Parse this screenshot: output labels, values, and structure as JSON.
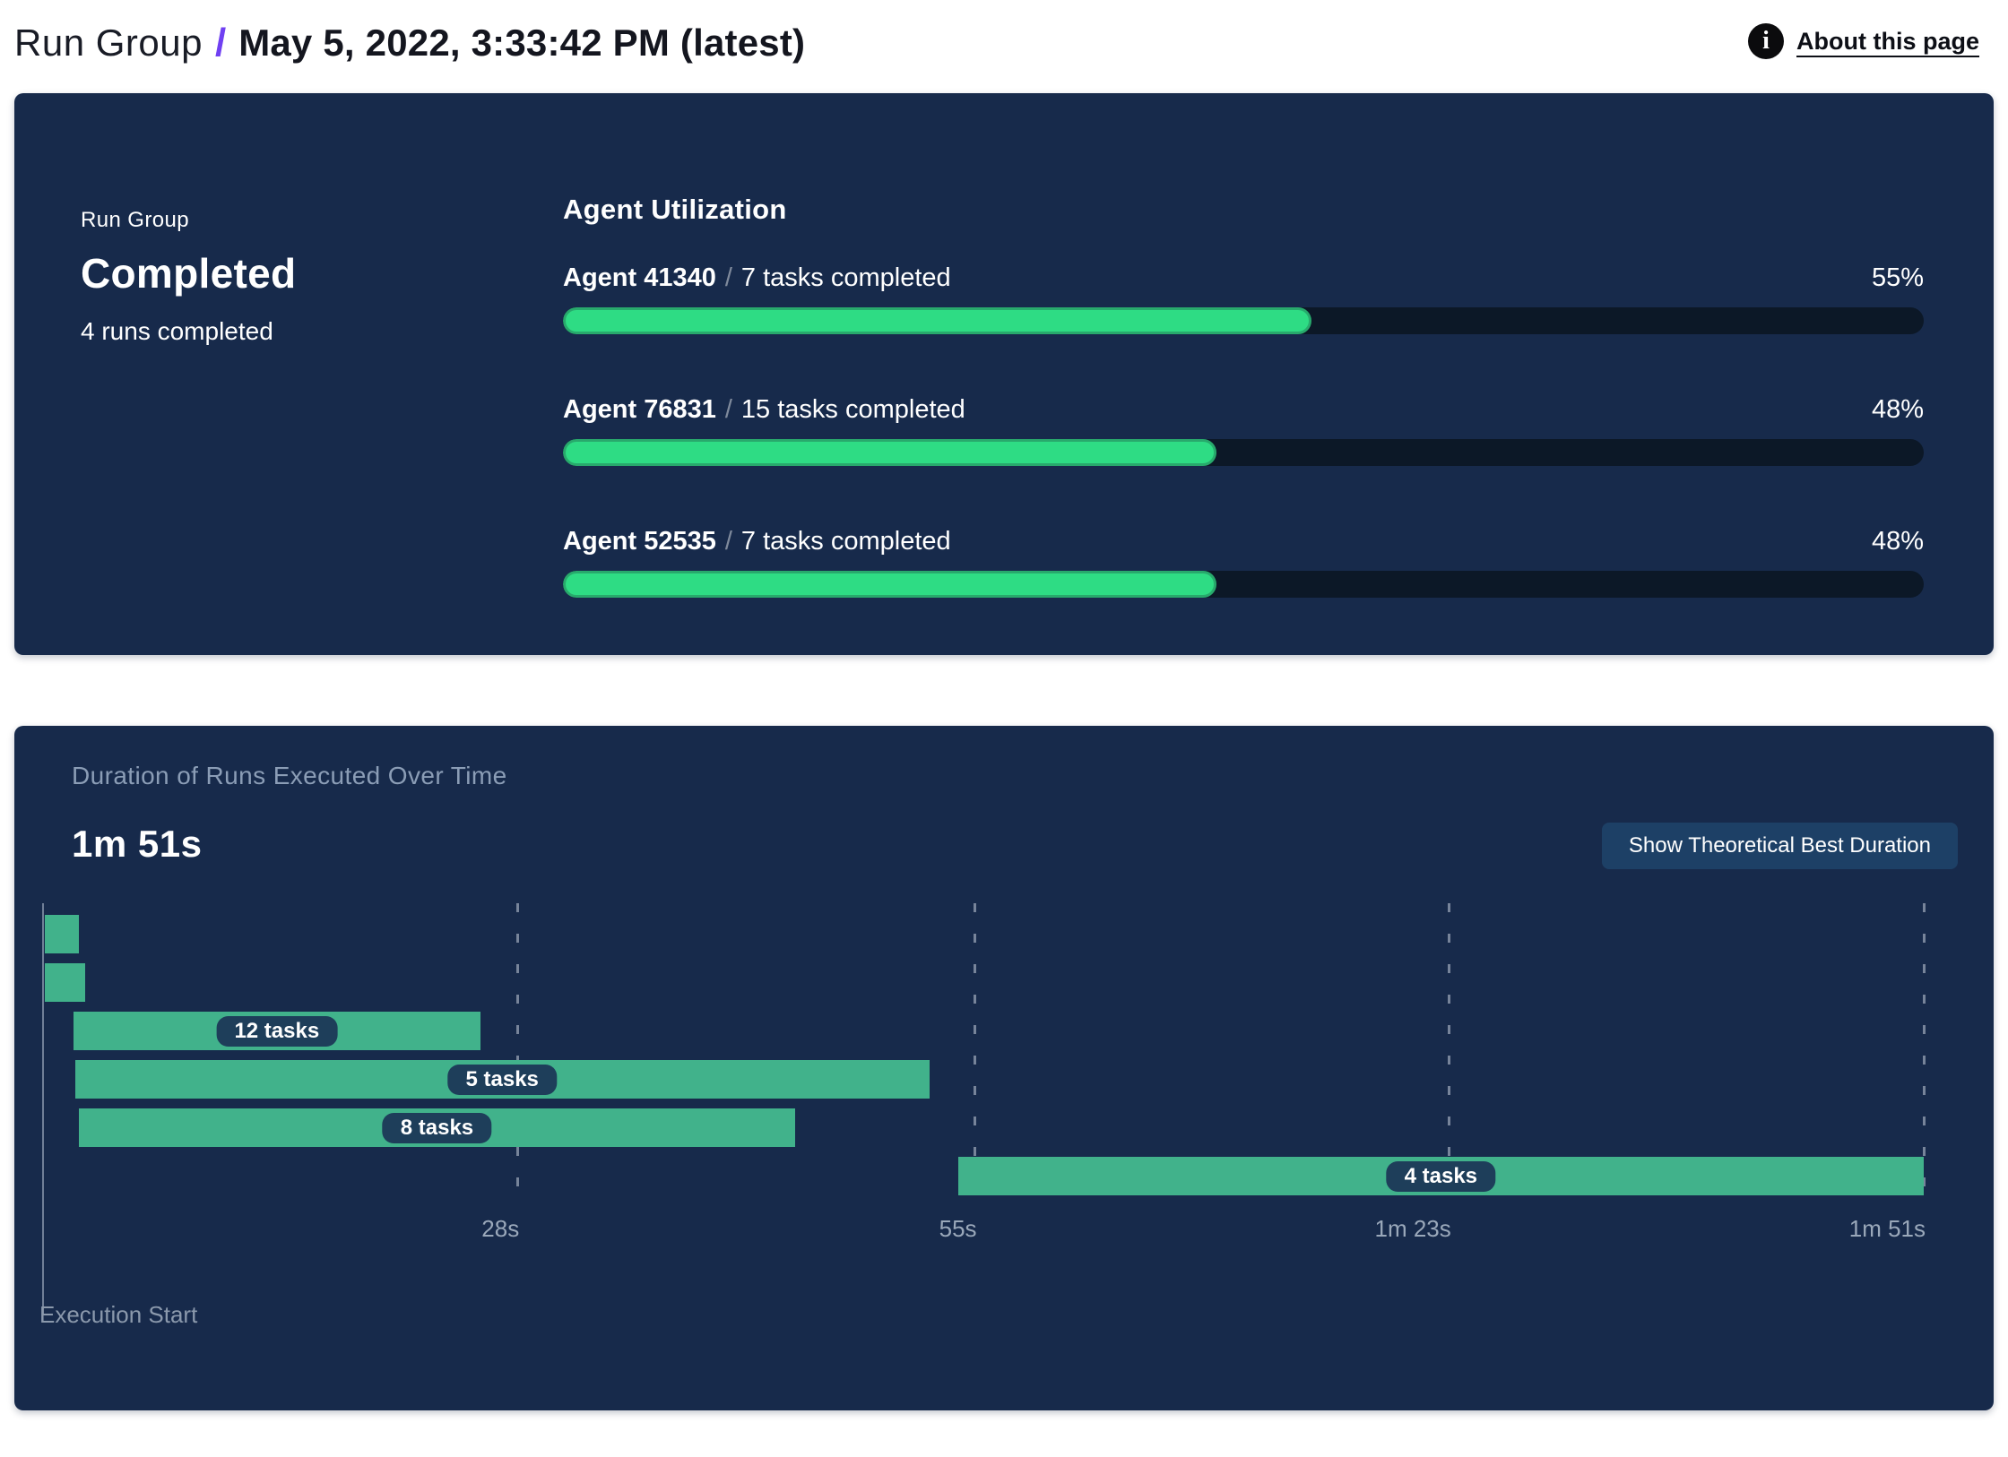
{
  "header": {
    "breadcrumb": "Run Group",
    "separator": "/",
    "title": "May 5, 2022, 3:33:42 PM (latest)",
    "about_link": "About this page",
    "info_icon_glyph": "i"
  },
  "status_card": {
    "label": "Run Group",
    "status": "Completed",
    "runs_summary": "4 runs completed"
  },
  "agent_utilization": {
    "title": "Agent Utilization",
    "separator": "/",
    "agents": [
      {
        "name": "Agent 41340",
        "tasks_completed": "7 tasks completed",
        "percent": 55,
        "percent_label": "55%"
      },
      {
        "name": "Agent 76831",
        "tasks_completed": "15 tasks completed",
        "percent": 48,
        "percent_label": "48%"
      },
      {
        "name": "Agent 52535",
        "tasks_completed": "7 tasks completed",
        "percent": 48,
        "percent_label": "48%"
      }
    ]
  },
  "duration_card": {
    "title": "Duration of Runs Executed Over Time",
    "total_duration": "1m 51s",
    "button_label": "Show Theoretical Best Duration",
    "execution_start_label": "Execution Start"
  },
  "chart_data": {
    "type": "gantt",
    "title": "Duration of Runs Executed Over Time",
    "total_duration_label": "1m 51s",
    "x_axis": {
      "range_s": [
        0,
        111
      ],
      "start_label": "Execution Start",
      "ticks": [
        {
          "label": "28s",
          "t": 28
        },
        {
          "label": "55s",
          "t": 55
        },
        {
          "label": "1m 23s",
          "t": 83
        },
        {
          "label": "1m 51s",
          "t": 111
        }
      ],
      "grid": "dashed-vertical"
    },
    "runs": [
      {
        "label": "",
        "start_s": 0.1,
        "end_s": 2.1
      },
      {
        "label": "",
        "start_s": 0.1,
        "end_s": 2.5
      },
      {
        "label": "12 tasks",
        "start_s": 1.8,
        "end_s": 25.8
      },
      {
        "label": "5 tasks",
        "start_s": 1.9,
        "end_s": 52.3
      },
      {
        "label": "8 tasks",
        "start_s": 2.1,
        "end_s": 44.4
      },
      {
        "label": "4 tasks",
        "start_s": 54.0,
        "end_s": 111.0
      }
    ],
    "legend": null
  },
  "colors": {
    "card_bg": "#172a4b",
    "progress_fill": "#2edc84",
    "progress_fill_border": "#28a96c",
    "progress_track": "#0c1827",
    "gantt_bar": "#41b28b",
    "pill_bg": "#1e3e5a",
    "button_bg": "#1d4066",
    "breadcrumb_separator": "#7040f2",
    "muted_text": "#8b9db6",
    "tick_text": "#9aa8ba"
  }
}
